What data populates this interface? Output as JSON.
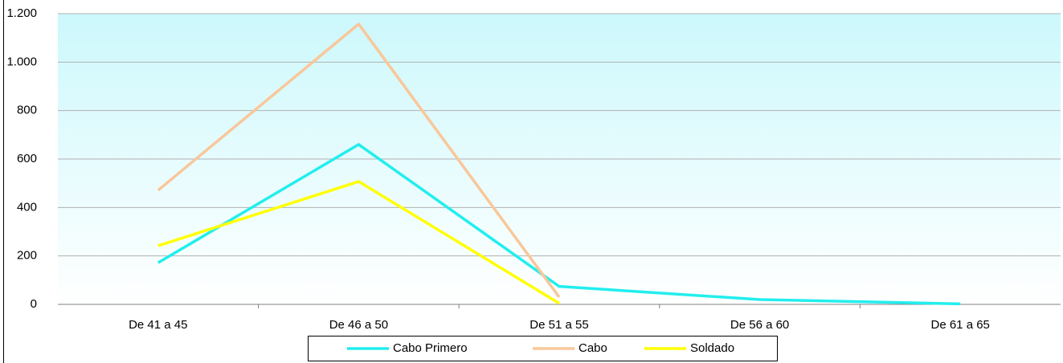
{
  "chart_data": {
    "type": "line",
    "categories": [
      "De 41 a 45",
      "De 46 a 50",
      "De 51 a 55",
      "De 56 a 60",
      "De 61 a 65"
    ],
    "series": [
      {
        "name": "Cabo Primero",
        "color": "#22eeee",
        "values": [
          172,
          660,
          74,
          20,
          2
        ]
      },
      {
        "name": "Cabo",
        "color": "#f9c79a",
        "values": [
          471,
          1157,
          30,
          null,
          null
        ]
      },
      {
        "name": "Soldado",
        "color": "#ffff00",
        "values": [
          242,
          507,
          4,
          null,
          null
        ]
      }
    ],
    "ylim": [
      0,
      1200
    ],
    "yticks": [
      0,
      200,
      400,
      600,
      800,
      {
        "value": 1000,
        "label": "1.000"
      },
      {
        "value": 1200,
        "label": "1.200"
      }
    ],
    "grid": true,
    "legend": "bottom"
  }
}
